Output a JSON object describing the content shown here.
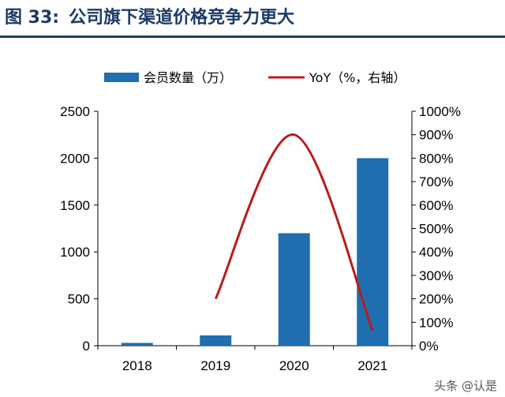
{
  "header": {
    "figure_label": "图 33:",
    "title": "公司旗下渠道价格竞争力更大"
  },
  "watermark": "头条 @认是",
  "colors": {
    "bar": "#1f6eb0",
    "line": "#b81c1c",
    "title": "#1c3a66",
    "axis": "#000000"
  },
  "chart_data": {
    "type": "bar",
    "categories": [
      "2018",
      "2019",
      "2020",
      "2021"
    ],
    "series": [
      {
        "name": "会员数量（万）",
        "type": "bar",
        "axis": "left",
        "values": [
          30,
          110,
          1200,
          2000
        ]
      },
      {
        "name": "YoY（%，右轴）",
        "type": "line",
        "axis": "right",
        "values": [
          null,
          200,
          900,
          65
        ]
      }
    ],
    "ylim": [
      0,
      2500
    ],
    "yticks": [
      "0",
      "500",
      "1000",
      "1500",
      "2000",
      "2500"
    ],
    "y2lim": [
      0,
      1000
    ],
    "y2ticks": [
      "0%",
      "100%",
      "200%",
      "300%",
      "400%",
      "500%",
      "600%",
      "700%",
      "800%",
      "900%",
      "1000%"
    ],
    "legend_position": "top",
    "grid": false
  }
}
